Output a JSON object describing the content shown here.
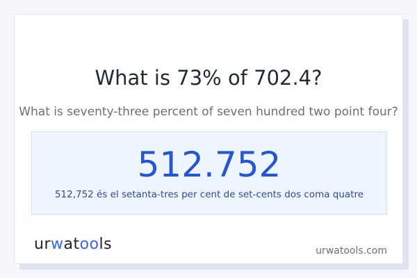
{
  "question": {
    "title": "What is 73% of 702.4?",
    "subtitle": "What is seventy-three percent of seven hundred two point four?"
  },
  "result": {
    "answer": "512.752",
    "words": "512,752 és el setanta-tres per cent de set-cents dos coma quatre"
  },
  "footer": {
    "logo_text": "urwatools",
    "site": "urwatools.com"
  },
  "colors": {
    "accent": "#2357d1",
    "result_bg": "#eef5fe",
    "shadow": "#dde3f0"
  }
}
